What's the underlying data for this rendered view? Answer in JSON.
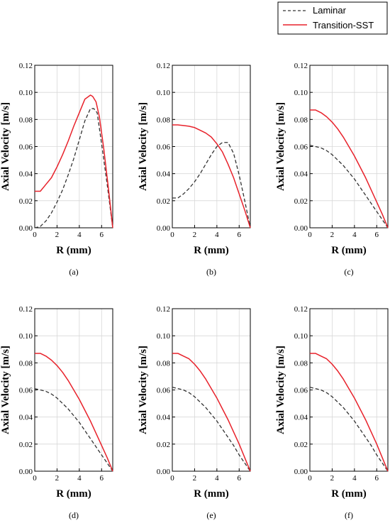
{
  "legend": {
    "entries": [
      {
        "name": "Laminar",
        "color": "#333333",
        "style": "dashed"
      },
      {
        "name": "Transition-SST",
        "color": "#e8222b",
        "style": "solid"
      }
    ]
  },
  "chart_data": [
    {
      "type": "line",
      "panel_label": "(a)",
      "xlabel": "R (mm)",
      "ylabel": "Axial Velocity [m/s]",
      "xlim": [
        0,
        7
      ],
      "ylim": [
        0,
        0.12
      ],
      "xticks": [
        "0",
        "2",
        "4",
        "6"
      ],
      "yticks": [
        "0.00",
        "0.02",
        "0.04",
        "0.06",
        "0.08",
        "0.10",
        "0.12"
      ],
      "grid": true,
      "series": [
        {
          "name": "Laminar",
          "x": [
            0,
            0.5,
            1,
            1.5,
            2,
            2.5,
            3,
            3.5,
            4,
            4.5,
            5,
            5.3,
            5.6,
            6,
            6.5,
            7
          ],
          "y": [
            0,
            0.001,
            0.005,
            0.011,
            0.019,
            0.028,
            0.039,
            0.051,
            0.065,
            0.079,
            0.088,
            0.088,
            0.085,
            0.062,
            0.032,
            0
          ]
        },
        {
          "name": "Transition-SST",
          "x": [
            0,
            0.5,
            1,
            1.5,
            2,
            2.5,
            3,
            3.5,
            4,
            4.5,
            5,
            5.2,
            5.5,
            5.8,
            6.2,
            6.6,
            7
          ],
          "y": [
            0.027,
            0.027,
            0.032,
            0.037,
            0.045,
            0.054,
            0.064,
            0.075,
            0.085,
            0.095,
            0.098,
            0.097,
            0.093,
            0.082,
            0.058,
            0.03,
            0
          ]
        }
      ]
    },
    {
      "type": "line",
      "panel_label": "(b)",
      "xlabel": "R (mm)",
      "ylabel": "Axial Velocity [m/s]",
      "xlim": [
        0,
        7
      ],
      "ylim": [
        0,
        0.12
      ],
      "xticks": [
        "0",
        "2",
        "4",
        "6"
      ],
      "yticks": [
        "0.00",
        "0.02",
        "0.04",
        "0.06",
        "0.08",
        "0.10",
        "0.12"
      ],
      "grid": true,
      "series": [
        {
          "name": "Laminar",
          "x": [
            0,
            0.5,
            1,
            1.5,
            2,
            2.5,
            3,
            3.5,
            4,
            4.5,
            5,
            5.5,
            6,
            6.5,
            7
          ],
          "y": [
            0.022,
            0.022,
            0.025,
            0.029,
            0.034,
            0.04,
            0.047,
            0.054,
            0.06,
            0.063,
            0.063,
            0.055,
            0.039,
            0.02,
            0
          ]
        },
        {
          "name": "Transition-SST",
          "x": [
            0,
            0.5,
            1,
            1.5,
            2,
            2.5,
            3,
            3.5,
            4,
            4.5,
            5,
            5.5,
            6,
            6.5,
            7
          ],
          "y": [
            0.076,
            0.076,
            0.0755,
            0.075,
            0.074,
            0.072,
            0.07,
            0.067,
            0.062,
            0.056,
            0.047,
            0.037,
            0.025,
            0.013,
            0
          ]
        }
      ]
    },
    {
      "type": "line",
      "panel_label": "(c)",
      "xlabel": "R (mm)",
      "ylabel": "Axial Velocity [m/s]",
      "xlim": [
        0,
        7
      ],
      "ylim": [
        0,
        0.12
      ],
      "xticks": [
        "0",
        "2",
        "4",
        "6"
      ],
      "yticks": [
        "0.00",
        "0.02",
        "0.04",
        "0.06",
        "0.08",
        "0.10",
        "0.12"
      ],
      "grid": true,
      "series": [
        {
          "name": "Laminar",
          "x": [
            0,
            0.5,
            1,
            1.5,
            2,
            2.5,
            3,
            3.5,
            4,
            4.5,
            5,
            5.5,
            6,
            6.5,
            7
          ],
          "y": [
            0.061,
            0.06,
            0.059,
            0.057,
            0.054,
            0.05,
            0.046,
            0.041,
            0.036,
            0.03,
            0.024,
            0.018,
            0.012,
            0.006,
            0
          ]
        },
        {
          "name": "Transition-SST",
          "x": [
            0,
            0.5,
            1,
            1.5,
            2,
            2.5,
            3,
            3.5,
            4,
            4.5,
            5,
            5.5,
            6,
            6.5,
            7
          ],
          "y": [
            0.087,
            0.087,
            0.085,
            0.082,
            0.078,
            0.073,
            0.067,
            0.06,
            0.053,
            0.045,
            0.037,
            0.028,
            0.019,
            0.01,
            0
          ]
        }
      ]
    },
    {
      "type": "line",
      "panel_label": "(d)",
      "xlabel": "R (mm)",
      "ylabel": "Axial Velocity [m/s]",
      "xlim": [
        0,
        7
      ],
      "ylim": [
        0,
        0.12
      ],
      "xticks": [
        "0",
        "2",
        "4",
        "6"
      ],
      "yticks": [
        "0.00",
        "0.02",
        "0.04",
        "0.06",
        "0.08",
        "0.10",
        "0.12"
      ],
      "grid": true,
      "series": [
        {
          "name": "Laminar",
          "x": [
            0,
            0.5,
            1,
            1.5,
            2,
            2.5,
            3,
            3.5,
            4,
            4.5,
            5,
            5.5,
            6,
            6.5,
            7
          ],
          "y": [
            0.061,
            0.06,
            0.059,
            0.057,
            0.054,
            0.05,
            0.046,
            0.041,
            0.036,
            0.03,
            0.024,
            0.018,
            0.012,
            0.006,
            0
          ]
        },
        {
          "name": "Transition-SST",
          "x": [
            0,
            0.5,
            1,
            1.5,
            2,
            2.5,
            3,
            3.5,
            4,
            4.5,
            5,
            5.5,
            6,
            6.5,
            7
          ],
          "y": [
            0.087,
            0.087,
            0.085,
            0.082,
            0.078,
            0.073,
            0.067,
            0.06,
            0.053,
            0.045,
            0.037,
            0.028,
            0.019,
            0.01,
            0
          ]
        }
      ]
    },
    {
      "type": "line",
      "panel_label": "(e)",
      "xlabel": "R (mm)",
      "ylabel": "Axial Velocity [m/s]",
      "xlim": [
        0,
        7
      ],
      "ylim": [
        0,
        0.12
      ],
      "xticks": [
        "0",
        "2",
        "4",
        "6"
      ],
      "yticks": [
        "0.00",
        "0.02",
        "0.04",
        "0.06",
        "0.08",
        "0.10",
        "0.12"
      ],
      "grid": true,
      "series": [
        {
          "name": "Laminar",
          "x": [
            0,
            0.5,
            1,
            1.5,
            2,
            2.5,
            3,
            3.5,
            4,
            4.5,
            5,
            5.5,
            6,
            6.5,
            7
          ],
          "y": [
            0.062,
            0.061,
            0.06,
            0.058,
            0.055,
            0.051,
            0.047,
            0.042,
            0.037,
            0.031,
            0.025,
            0.019,
            0.012,
            0.006,
            0
          ]
        },
        {
          "name": "Transition-SST",
          "x": [
            0,
            0.5,
            1,
            1.5,
            2,
            2.5,
            3,
            3.5,
            4,
            4.5,
            5,
            5.5,
            6,
            6.5,
            7
          ],
          "y": [
            0.087,
            0.087,
            0.085,
            0.083,
            0.079,
            0.074,
            0.068,
            0.061,
            0.054,
            0.046,
            0.038,
            0.029,
            0.02,
            0.01,
            0
          ]
        }
      ]
    },
    {
      "type": "line",
      "panel_label": "(f)",
      "xlabel": "R (mm)",
      "ylabel": "Axial Velocity [m/s]",
      "xlim": [
        0,
        7
      ],
      "ylim": [
        0,
        0.12
      ],
      "xticks": [
        "0",
        "2",
        "4",
        "6"
      ],
      "yticks": [
        "0.00",
        "0.02",
        "0.04",
        "0.06",
        "0.08",
        "0.10",
        "0.12"
      ],
      "grid": true,
      "series": [
        {
          "name": "Laminar",
          "x": [
            0,
            0.5,
            1,
            1.5,
            2,
            2.5,
            3,
            3.5,
            4,
            4.5,
            5,
            5.5,
            6,
            6.5,
            7
          ],
          "y": [
            0.062,
            0.061,
            0.06,
            0.058,
            0.055,
            0.051,
            0.047,
            0.042,
            0.037,
            0.031,
            0.025,
            0.019,
            0.012,
            0.006,
            0
          ]
        },
        {
          "name": "Transition-SST",
          "x": [
            0,
            0.5,
            1,
            1.5,
            2,
            2.5,
            3,
            3.5,
            4,
            4.5,
            5,
            5.5,
            6,
            6.5,
            7
          ],
          "y": [
            0.087,
            0.087,
            0.085,
            0.083,
            0.079,
            0.074,
            0.068,
            0.061,
            0.054,
            0.046,
            0.038,
            0.029,
            0.02,
            0.01,
            0
          ]
        }
      ]
    }
  ]
}
